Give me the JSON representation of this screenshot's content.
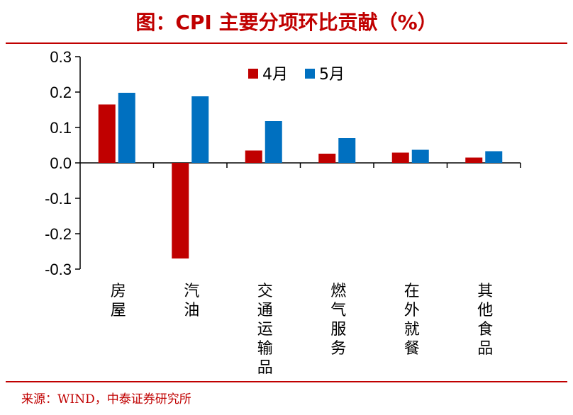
{
  "title": "图：CPI 主要分项环比贡献（%）",
  "source": "来源：WIND，中泰证券研究所",
  "colors": {
    "accent": "#c00000",
    "series_1": "#c00000",
    "series_2": "#0070c0"
  },
  "chart_data": {
    "type": "bar",
    "title": "图：CPI 主要分项环比贡献（%）",
    "categories": [
      "房屋",
      "汽油",
      "交通运输品",
      "燃气服务",
      "在外就餐",
      "其他食品"
    ],
    "series": [
      {
        "name": "4月",
        "values": [
          0.165,
          -0.27,
          0.035,
          0.026,
          0.029,
          0.015
        ]
      },
      {
        "name": "5月",
        "values": [
          0.198,
          0.188,
          0.118,
          0.07,
          0.037,
          0.033
        ]
      }
    ],
    "yticks": [
      "0.3",
      "0.2",
      "0.1",
      "0.0",
      "-0.1",
      "-0.2",
      "-0.3"
    ],
    "ylim": [
      -0.3,
      0.3
    ],
    "xlabel": "",
    "ylabel": "",
    "grid": false,
    "legend_position": "top-center"
  }
}
